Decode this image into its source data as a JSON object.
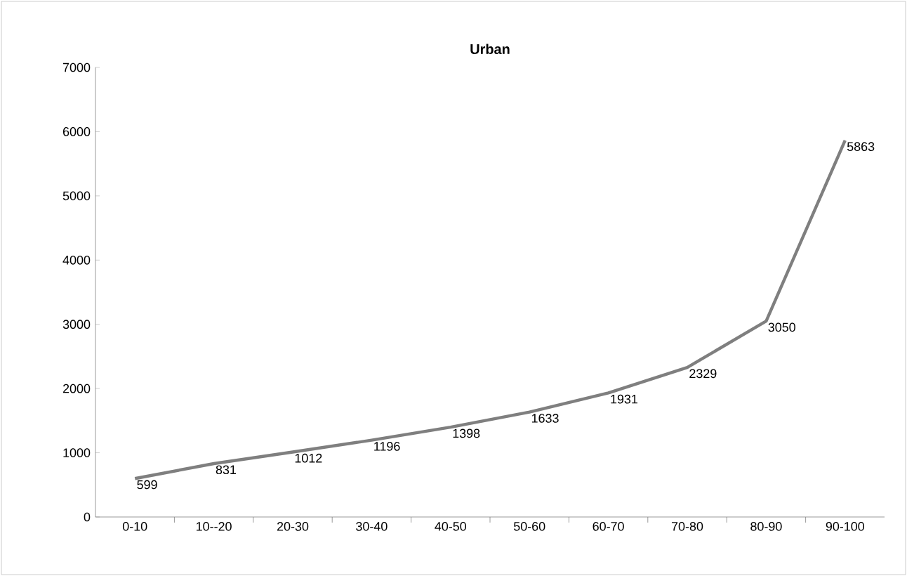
{
  "chart_data": {
    "type": "line",
    "title": "Urban",
    "categories": [
      "0-10",
      "10--20",
      "20-30",
      "30-40",
      "40-50",
      "50-60",
      "60-70",
      "70-80",
      "80-90",
      "90-100"
    ],
    "values": [
      599,
      831,
      1012,
      1196,
      1398,
      1633,
      1931,
      2329,
      3050,
      5863
    ],
    "color": "#7f7f7f",
    "ylim": [
      0,
      7000
    ],
    "yticks": [
      0,
      1000,
      2000,
      3000,
      4000,
      5000,
      6000,
      7000
    ],
    "grid": false,
    "marker": "none",
    "line_style": "solid",
    "data_labels": true
  }
}
